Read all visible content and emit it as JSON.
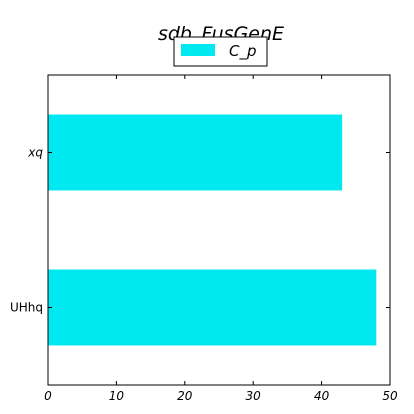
{
  "chart_data": {
    "type": "bar",
    "orientation": "horizontal",
    "title": "sdb_FusGenE",
    "categories": [
      "UHhq",
      "xq"
    ],
    "series": [
      {
        "name": "C_p",
        "values": [
          48,
          43
        ],
        "color": "#00e8f0"
      }
    ],
    "xlabel": "",
    "ylabel": "",
    "xlim": [
      0,
      50
    ],
    "xticks": [
      0,
      10,
      20,
      30,
      40,
      50
    ],
    "grid": false,
    "legend_position": "top-center"
  }
}
